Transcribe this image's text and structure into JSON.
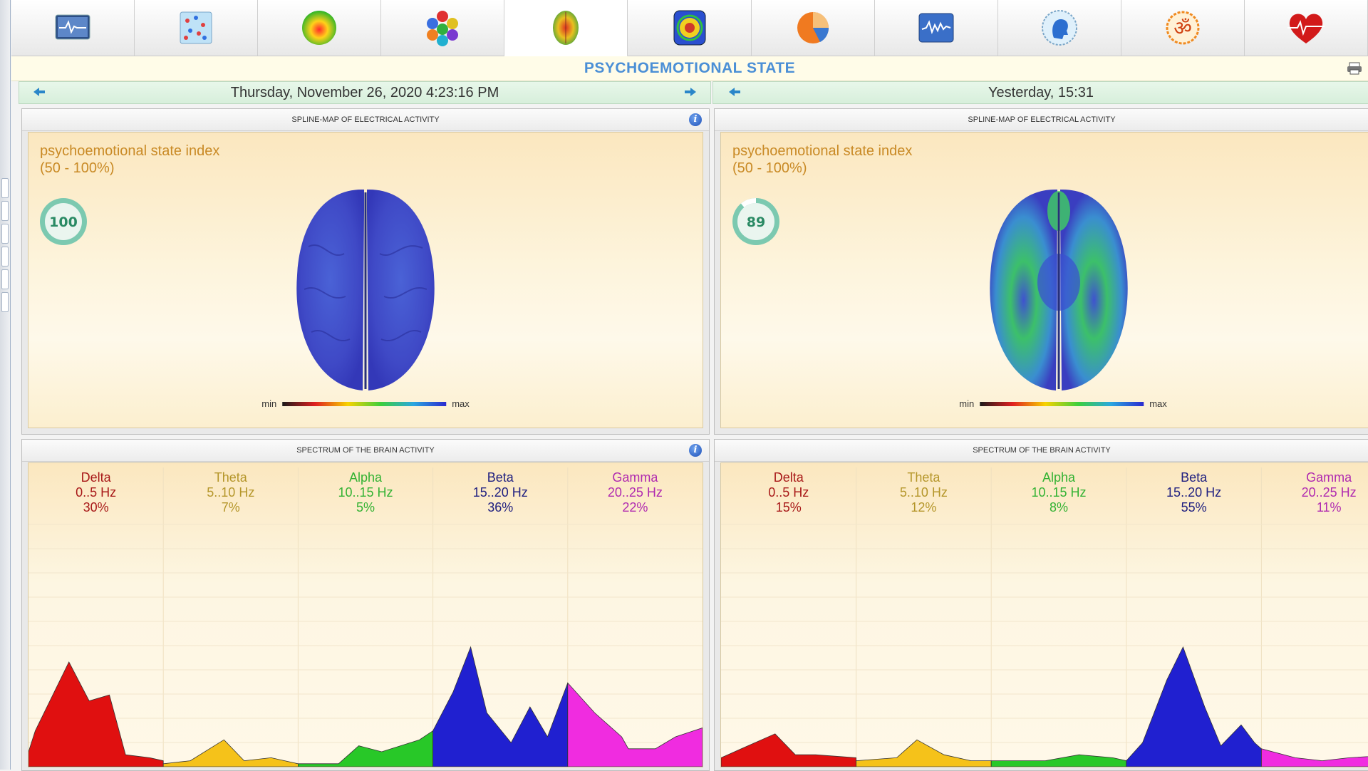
{
  "toolbar": {
    "tabs": [
      {
        "icon": "ecg-monitor-icon"
      },
      {
        "icon": "dot-matrix-icon"
      },
      {
        "icon": "spectrum-sphere-icon"
      },
      {
        "icon": "hexagon-cluster-icon"
      },
      {
        "icon": "brain-map-icon",
        "active": true
      },
      {
        "icon": "body-scan-icon"
      },
      {
        "icon": "pie-chart-icon"
      },
      {
        "icon": "waveform-monitor-icon"
      },
      {
        "icon": "head-profile-icon"
      },
      {
        "icon": "om-symbol-icon"
      },
      {
        "icon": "heart-pulse-icon"
      }
    ]
  },
  "header": {
    "title": "PSYCHOEMOTIONAL STATE"
  },
  "left": {
    "date": "Thursday, November 26, 2020 4:23:16 PM",
    "map": {
      "heading": "SPLINE-MAP OF ELECTRICAL ACTIVITY",
      "index_label": "psychoemotional state index",
      "index_range": "(50 - 100%)",
      "index_value": "100",
      "index_fraction": 1.0,
      "legend_min": "min",
      "legend_max": "max",
      "colors": {
        "base": "#3b43c8",
        "high": "#3b43c8"
      }
    },
    "spectrum": {
      "heading": "SPECTRUM OF THE BRAIN ACTIVITY",
      "bands": [
        {
          "name": "Delta",
          "range": "0..5 Hz",
          "pct": "30%",
          "color": "#a81818"
        },
        {
          "name": "Theta",
          "range": "5..10 Hz",
          "pct": "7%",
          "color": "#b5962a"
        },
        {
          "name": "Alpha",
          "range": "10..15 Hz",
          "pct": "5%",
          "color": "#33b233"
        },
        {
          "name": "Beta",
          "range": "15..20 Hz",
          "pct": "36%",
          "color": "#202080"
        },
        {
          "name": "Gamma",
          "range": "20..25 Hz",
          "pct": "22%",
          "color": "#b02ab0"
        }
      ]
    }
  },
  "right": {
    "date": "Yesterday, 15:31",
    "map": {
      "heading": "SPLINE-MAP OF ELECTRICAL ACTIVITY",
      "index_label": "psychoemotional state index",
      "index_range": "(50 - 100%)",
      "index_value": "89",
      "index_fraction": 0.89,
      "legend_min": "min",
      "legend_max": "max",
      "colors": {
        "base": "#3b43c8",
        "high": "#3cc86a"
      }
    },
    "spectrum": {
      "heading": "SPECTRUM OF THE BRAIN ACTIVITY",
      "bands": [
        {
          "name": "Delta",
          "range": "0..5 Hz",
          "pct": "15%",
          "color": "#a81818"
        },
        {
          "name": "Theta",
          "range": "5..10 Hz",
          "pct": "12%",
          "color": "#b5962a"
        },
        {
          "name": "Alpha",
          "range": "10..15 Hz",
          "pct": "8%",
          "color": "#33b233"
        },
        {
          "name": "Beta",
          "range": "15..20 Hz",
          "pct": "55%",
          "color": "#202080"
        },
        {
          "name": "Gamma",
          "range": "20..25 Hz",
          "pct": "11%",
          "color": "#b02ab0"
        }
      ]
    }
  },
  "band_fill_colors": [
    "#e01010",
    "#f5c21a",
    "#28c828",
    "#2020d0",
    "#f02ce0"
  ]
}
